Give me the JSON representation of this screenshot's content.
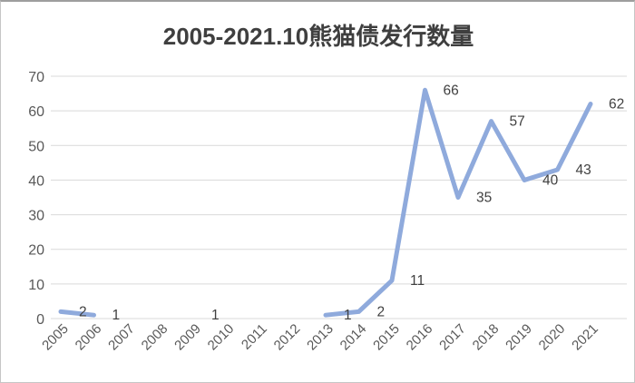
{
  "chart_title": "2005-2021.10熊猫债发行数量",
  "colors": {
    "line": "#8faadc",
    "grid": "#d9d9d9",
    "axis_text": "#595959",
    "data_label_text": "#404040",
    "title_text": "#3f3f3f",
    "background": "#ffffff",
    "border": "#c6c6c6"
  },
  "chart_data": {
    "type": "line",
    "title": "2005-2021.10熊猫债发行数量",
    "categories": [
      "2005",
      "2006",
      "2007",
      "2008",
      "2009",
      "2010",
      "2011",
      "2012",
      "2013",
      "2014",
      "2015",
      "2016",
      "2017",
      "2018",
      "2019",
      "2020",
      "2021"
    ],
    "values": [
      2,
      1,
      null,
      null,
      1,
      null,
      null,
      null,
      1,
      2,
      11,
      66,
      35,
      57,
      40,
      43,
      62
    ],
    "y_ticks": [
      0,
      10,
      20,
      30,
      40,
      50,
      60,
      70
    ],
    "ylim": [
      0,
      70
    ],
    "xlabel": "",
    "ylabel": "",
    "grid": true,
    "legend": "none",
    "data_labels": true,
    "missing_data_note": "gaps in line for years with no value; isolated 2009 point shows label only"
  }
}
